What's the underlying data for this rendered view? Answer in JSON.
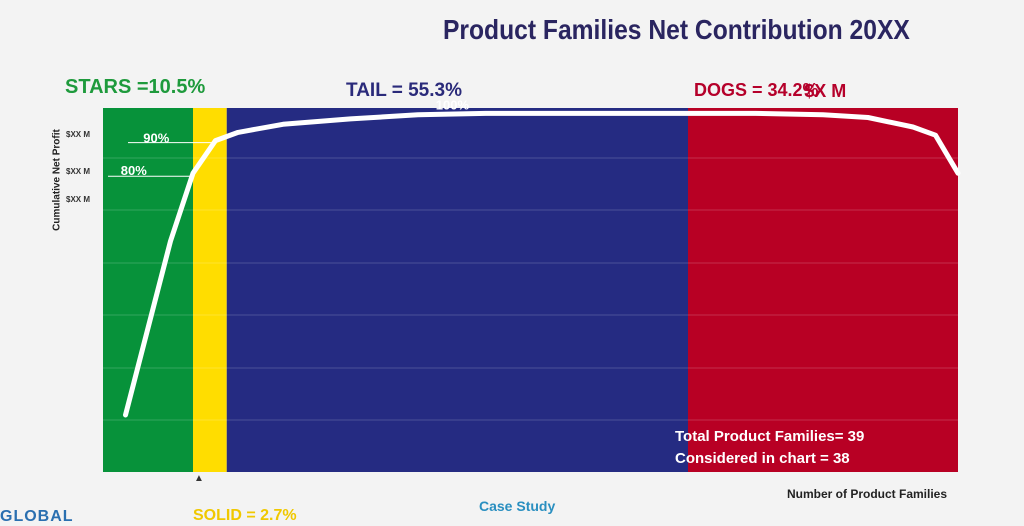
{
  "chart_data": {
    "type": "line",
    "title": "Product Families Net Contribution 20XX",
    "xlabel": "Number of Product Families",
    "ylabel": "Cumulative Net Profit",
    "ytick_labels": [
      "$XX M",
      "$XX M",
      "$XX M"
    ],
    "x_range": [
      0,
      38
    ],
    "y_range": [
      -30,
      104
    ],
    "segments": [
      {
        "name": "STARS",
        "label": "STARS =10.5%",
        "x_start": 0,
        "x_end": 4,
        "color": "#07923a"
      },
      {
        "name": "SOLID",
        "x_start": 4,
        "x_end": 5.5,
        "color": "#ffdd00"
      },
      {
        "name": "TAIL",
        "label": "TAIL = 55.3%",
        "x_start": 5.5,
        "x_end": 26,
        "color": "#252b82"
      },
      {
        "name": "DOGS",
        "label": "DOGS = 34.2%",
        "x_start": 26,
        "x_end": 38,
        "color": "#b80024"
      }
    ],
    "series": [
      {
        "x": [
          1,
          3,
          4,
          5,
          6,
          8,
          11,
          14,
          17,
          20,
          23,
          26,
          29,
          32,
          34,
          36,
          37,
          38
        ],
        "values": [
          -9,
          55,
          80,
          92,
          95,
          98,
          100,
          101.5,
          102,
          102,
          102,
          102,
          102,
          101.5,
          100.5,
          97,
          94,
          80
        ],
        "color": "#ffffff"
      }
    ],
    "annotations": [
      {
        "text": "100%",
        "x": 15.5,
        "y": 102
      },
      {
        "text": "90%",
        "x": 2.5,
        "y": 92
      },
      {
        "text": "80%",
        "x": 1.5,
        "y": 80
      },
      {
        "text": "$X M",
        "x": 32.5,
        "y": 118
      }
    ],
    "notes": [
      "Total Product Families= 39",
      "Considered in chart = 38"
    ],
    "grid": true
  },
  "footer": {
    "case_study": "Case Study",
    "partial_left": "GLOBAL",
    "partial_mid": "SOLID = 2.7%"
  },
  "marker_glyph": "▲"
}
